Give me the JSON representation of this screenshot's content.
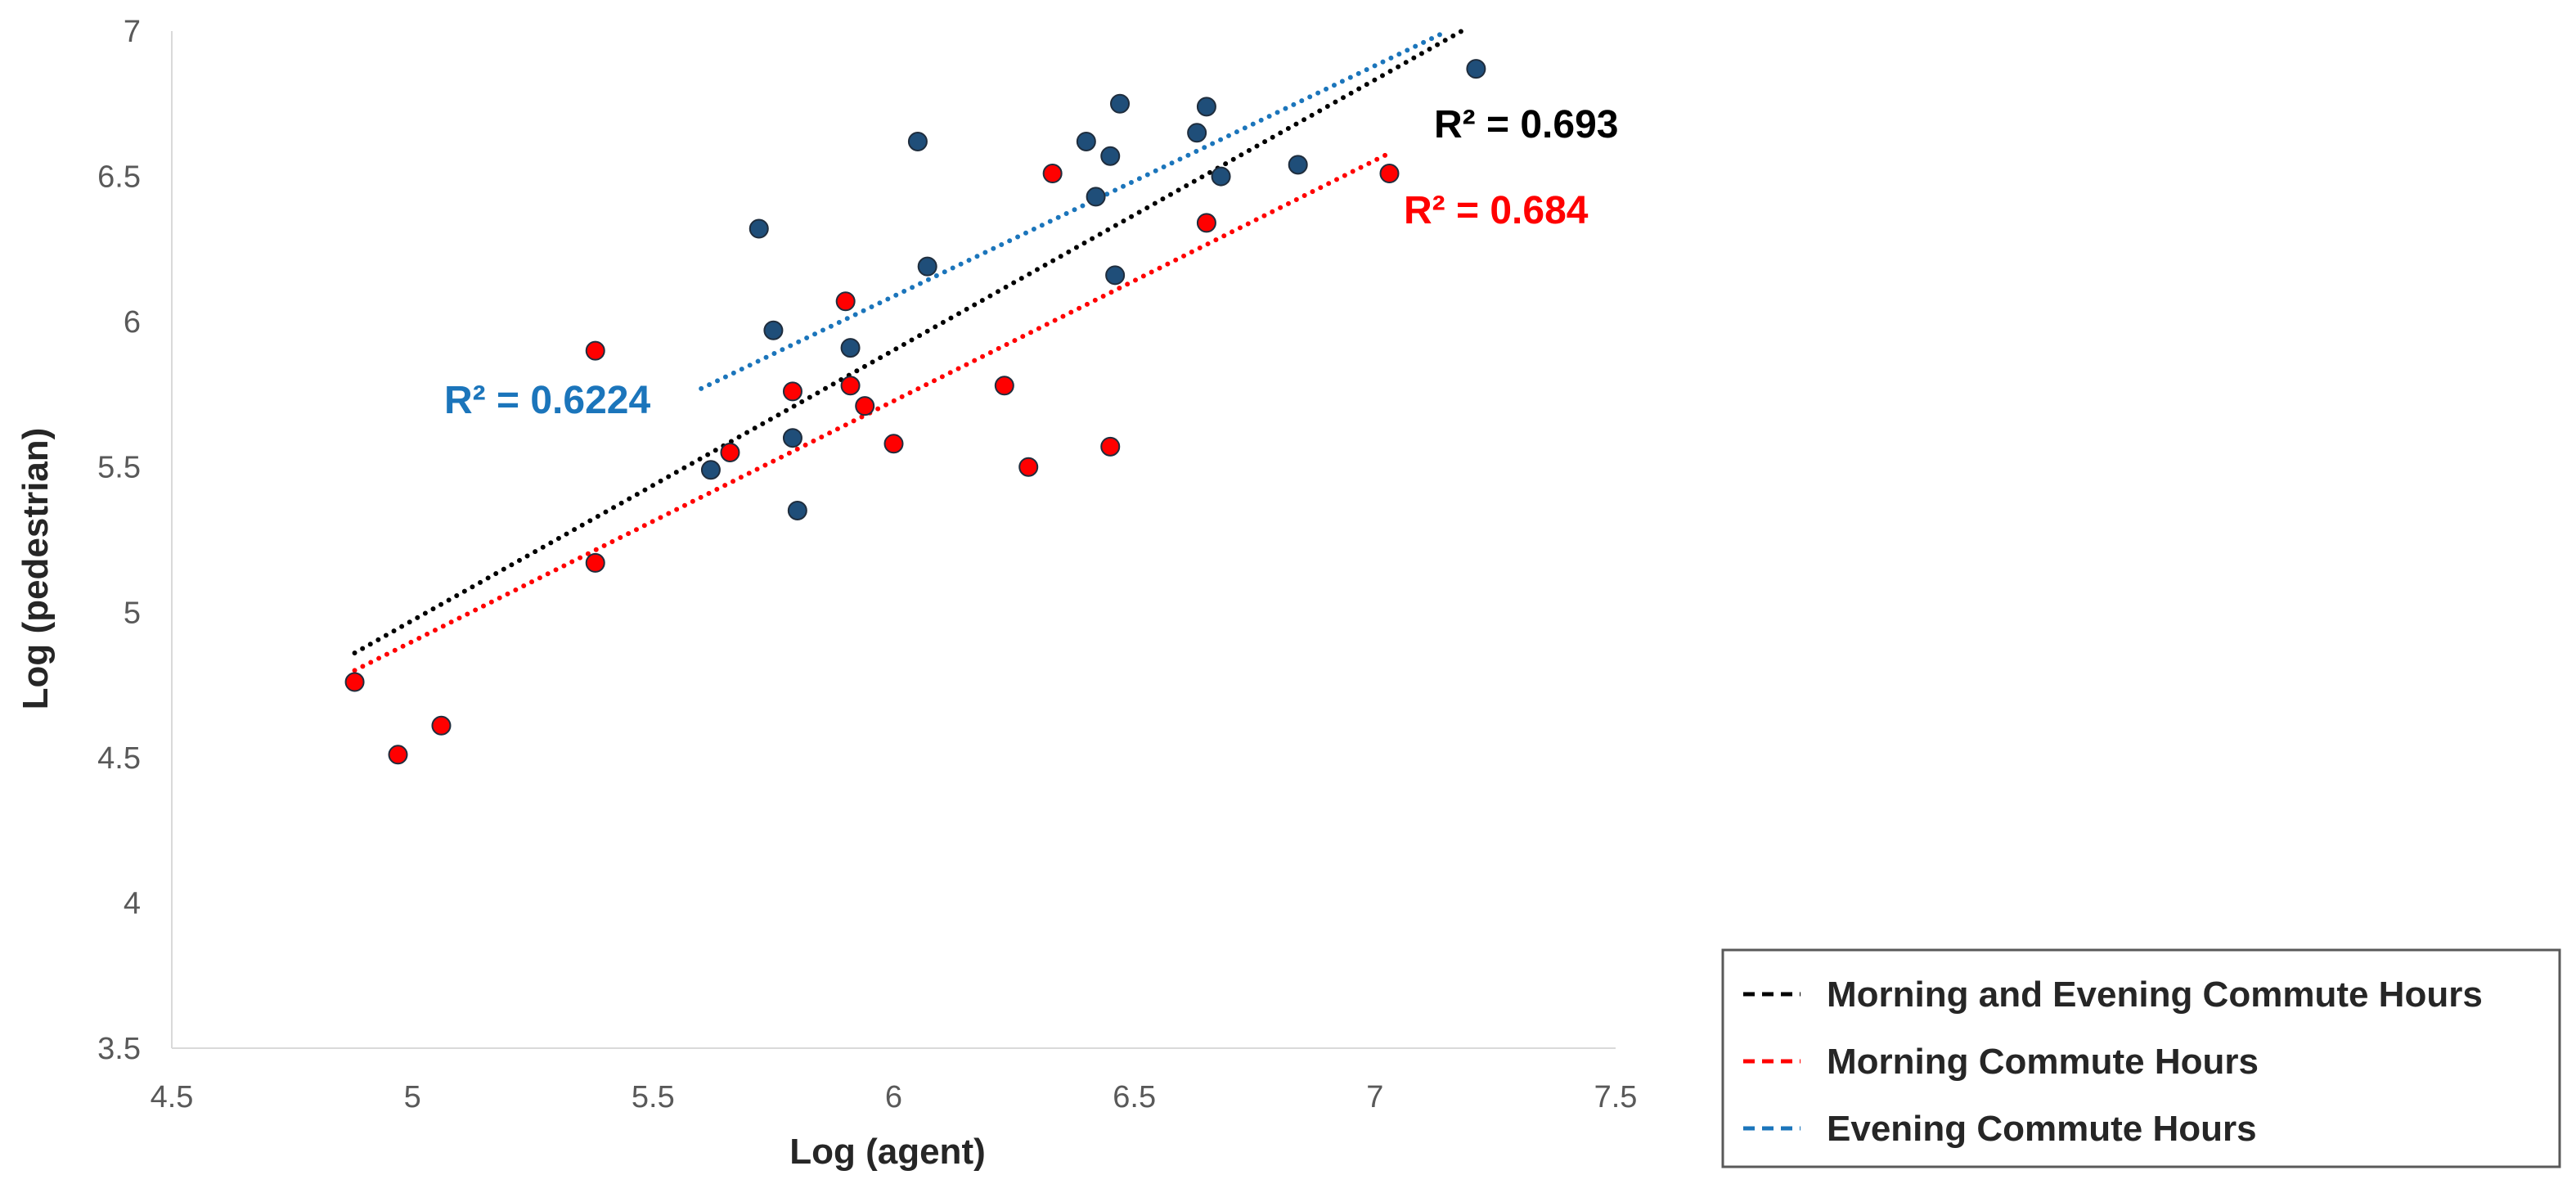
{
  "chart_data": {
    "type": "scatter",
    "title": "",
    "xlabel": "Log (agent)",
    "ylabel": "Log (pedestrian)",
    "xlim": [
      4.5,
      7.5
    ],
    "ylim": [
      3.5,
      7
    ],
    "xticks": [
      "4.5",
      "5",
      "5.5",
      "6",
      "6.5",
      "7",
      "7.5"
    ],
    "yticks": [
      "3.5",
      "4",
      "4.5",
      "5",
      "5.5",
      "6",
      "6.5",
      "7"
    ],
    "grid": false,
    "legend_position": "bottom-right",
    "series": [
      {
        "name": "Morning Commute Hours",
        "color": "#ff0000",
        "points": [
          [
            4.88,
            4.76
          ],
          [
            4.97,
            4.51
          ],
          [
            5.06,
            4.61
          ],
          [
            5.38,
            5.17
          ],
          [
            5.38,
            5.9
          ],
          [
            5.66,
            5.55
          ],
          [
            5.79,
            5.76
          ],
          [
            5.9,
            6.07
          ],
          [
            5.91,
            5.78
          ],
          [
            5.94,
            5.71
          ],
          [
            6.0,
            5.58
          ],
          [
            6.23,
            5.78
          ],
          [
            6.28,
            5.5
          ],
          [
            6.33,
            6.51
          ],
          [
            6.45,
            5.57
          ],
          [
            6.65,
            6.34
          ],
          [
            7.03,
            6.51
          ]
        ]
      },
      {
        "name": "Evening Commute Hours",
        "color": "#1f4e79",
        "points": [
          [
            5.62,
            5.49
          ],
          [
            5.72,
            6.32
          ],
          [
            5.75,
            5.97
          ],
          [
            5.79,
            5.6
          ],
          [
            5.8,
            5.35
          ],
          [
            5.91,
            5.91
          ],
          [
            6.05,
            6.62
          ],
          [
            6.07,
            6.19
          ],
          [
            6.4,
            6.62
          ],
          [
            6.42,
            6.43
          ],
          [
            6.45,
            6.57
          ],
          [
            6.46,
            6.16
          ],
          [
            6.47,
            6.75
          ],
          [
            6.63,
            6.65
          ],
          [
            6.65,
            6.74
          ],
          [
            6.68,
            6.5
          ],
          [
            6.84,
            6.54
          ],
          [
            7.21,
            6.87
          ]
        ]
      }
    ],
    "trendlines": [
      {
        "name": "Morning and Evening Commute Hours",
        "color": "#000000",
        "x": [
          4.88,
          7.18
        ],
        "y": [
          4.86,
          7.0
        ],
        "r2_label": "R² = 0.693"
      },
      {
        "name": "Morning Commute Hours",
        "color": "#ff0000",
        "x": [
          4.88,
          7.03
        ],
        "y": [
          4.8,
          6.58
        ],
        "r2_label": "R² = 0.684"
      },
      {
        "name": "Evening Commute Hours",
        "color": "#1b75bb",
        "x": [
          5.6,
          7.15
        ],
        "y": [
          5.77,
          7.0
        ],
        "r2_label": "R² = 0.6224"
      }
    ],
    "legend": [
      {
        "label": "Morning and Evening Commute Hours",
        "color": "#000000"
      },
      {
        "label": "Morning Commute Hours",
        "color": "#ff0000"
      },
      {
        "label": "Evening Commute Hours",
        "color": "#1b75bb"
      }
    ]
  }
}
